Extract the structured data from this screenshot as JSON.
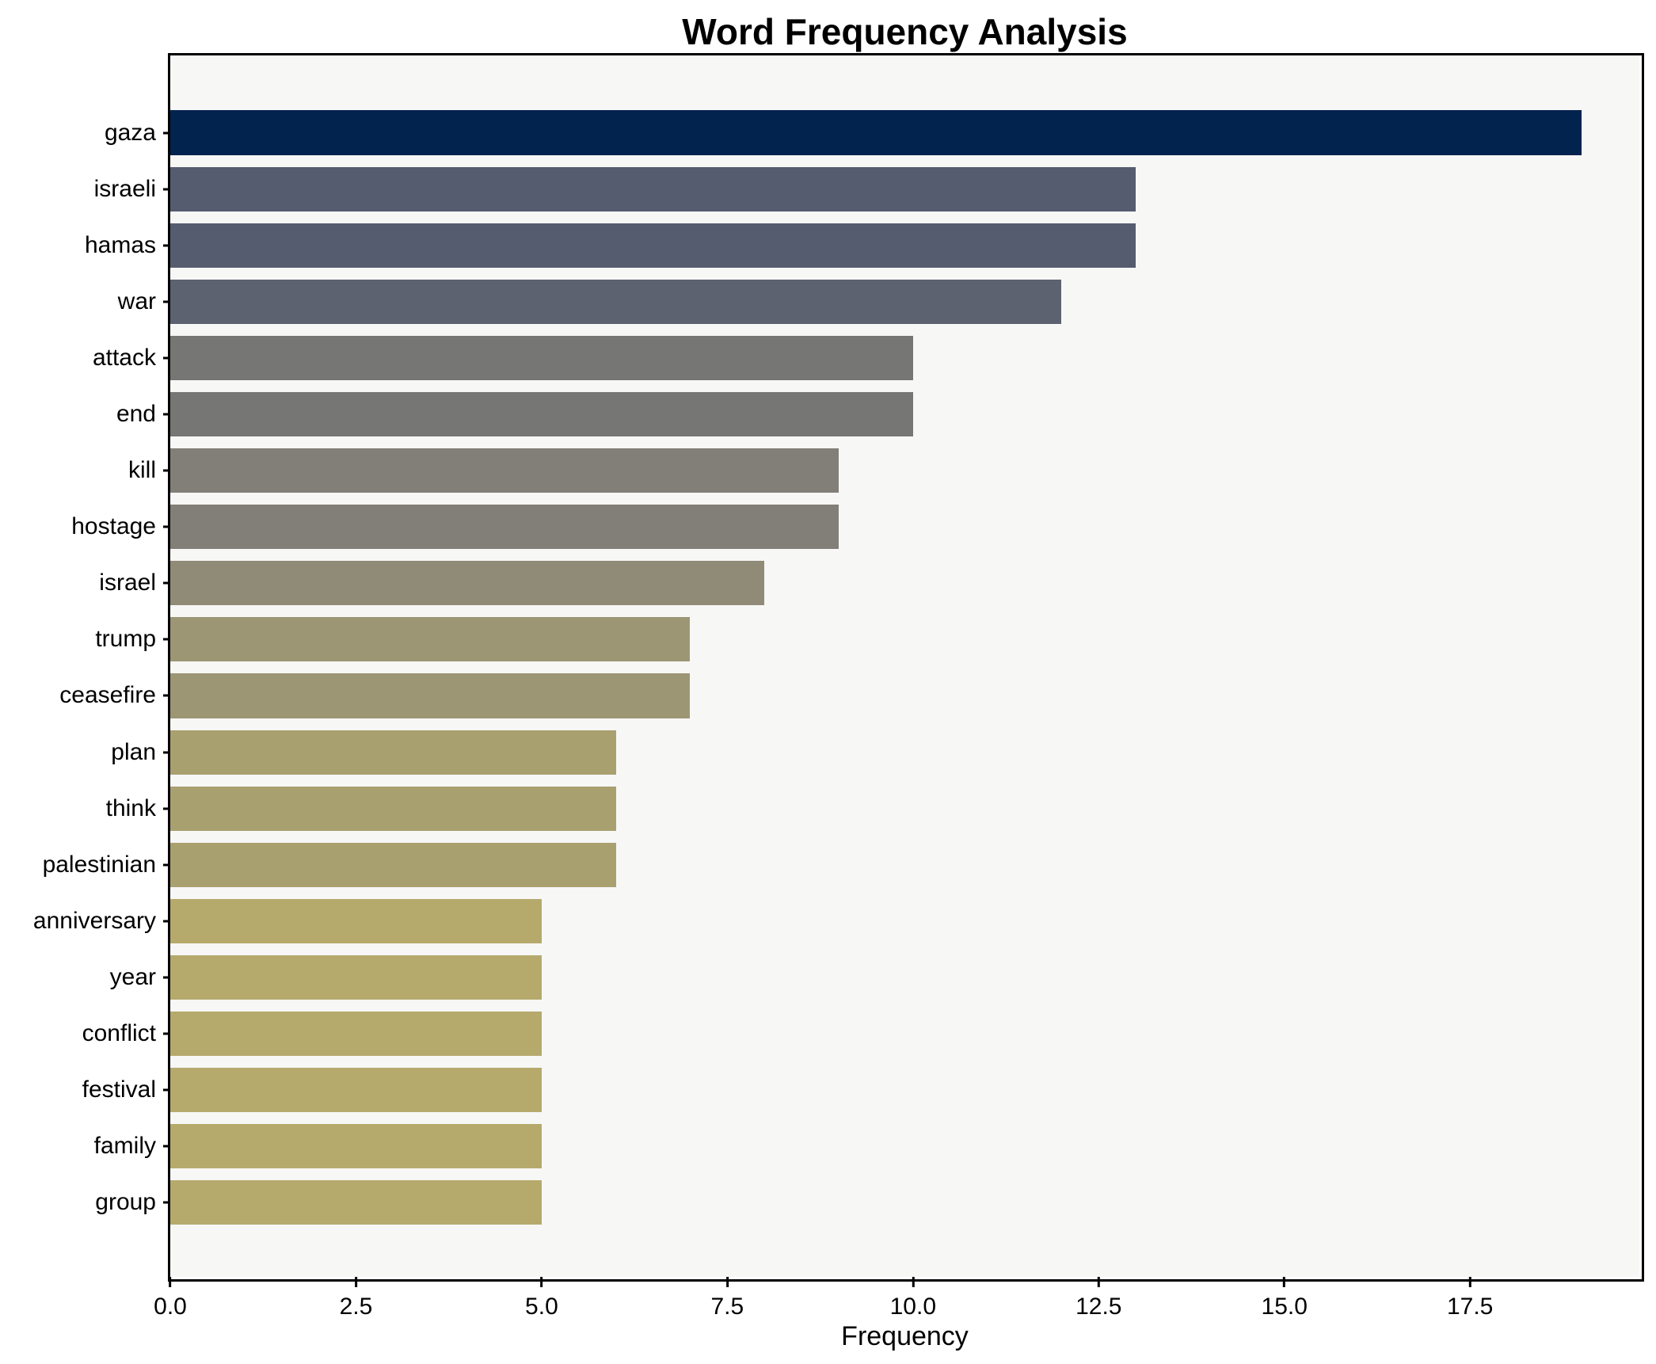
{
  "title": "Word Frequency Analysis",
  "colors": {
    "figure_bg": "#ffffff",
    "plot_bg": "#f7f7f6",
    "axis": "#000000",
    "text": "#000000"
  },
  "chart_data": {
    "type": "bar",
    "orientation": "horizontal",
    "title": "Word Frequency Analysis",
    "xlabel": "Frequency",
    "ylabel": "",
    "xlim": [
      0,
      19.78
    ],
    "x_tick_values": [
      0.0,
      2.5,
      5.0,
      7.5,
      10.0,
      12.5,
      15.0,
      17.5
    ],
    "x_tick_labels": [
      "0.0",
      "2.5",
      "5.0",
      "7.5",
      "10.0",
      "12.5",
      "15.0",
      "17.5"
    ],
    "grid": false,
    "legend": false,
    "categories": [
      "gaza",
      "israeli",
      "hamas",
      "war",
      "attack",
      "end",
      "kill",
      "hostage",
      "israel",
      "trump",
      "ceasefire",
      "plan",
      "think",
      "palestinian",
      "anniversary",
      "year",
      "conflict",
      "festival",
      "family",
      "group"
    ],
    "values": [
      19,
      13,
      13,
      12,
      10,
      10,
      9,
      9,
      8,
      7,
      7,
      6,
      6,
      6,
      5,
      5,
      5,
      5,
      5,
      5
    ],
    "bar_colors": [
      "#02234e",
      "#565c6f",
      "#565c6f",
      "#5d6270",
      "#767675",
      "#767675",
      "#827f78",
      "#827f78",
      "#8f8b77",
      "#9c9674",
      "#9c9674",
      "#a9a070",
      "#a9a070",
      "#a9a070",
      "#b5aa6c",
      "#b5aa6c",
      "#b5aa6c",
      "#b5aa6c",
      "#b5aa6c",
      "#b5aa6c"
    ]
  }
}
